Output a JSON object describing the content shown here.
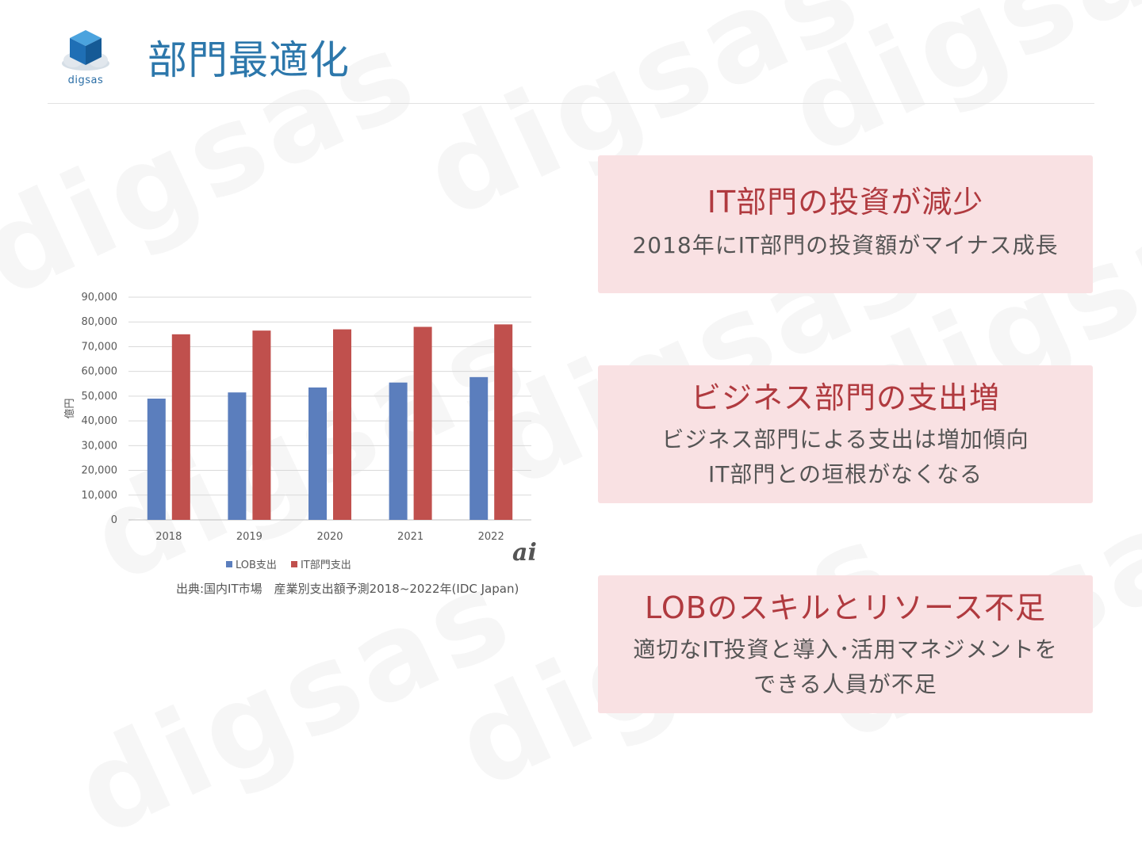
{
  "brand": {
    "logo_text": "digsas",
    "watermark_text": "digsas"
  },
  "page": {
    "title": "部門最適化"
  },
  "chart_data": {
    "type": "bar",
    "categories": [
      "2018",
      "2019",
      "2020",
      "2021",
      "2022"
    ],
    "series": [
      {
        "name": "LOB支出",
        "color": "#5b7ebd",
        "values": [
          49000,
          51500,
          53500,
          55500,
          57700
        ]
      },
      {
        "name": "IT部門支出",
        "color": "#c0504d",
        "values": [
          75000,
          76500,
          77000,
          78000,
          79000
        ]
      }
    ],
    "ylabel": "億円",
    "ylim": [
      0,
      90000
    ],
    "yticks": [
      "0",
      "10,000",
      "20,000",
      "30,000",
      "40,000",
      "50,000",
      "60,000",
      "70,000",
      "80,000",
      "90,000"
    ],
    "grid": true,
    "legend": "bottom",
    "source": "出典:国内IT市場　産業別支出額予測2018~2022年(IDC Japan)",
    "badge": "ai"
  },
  "cards": [
    {
      "heading": "IT部門の投資が減少",
      "lines": [
        "2018年にIT部門の投資額がマイナス成長"
      ]
    },
    {
      "heading": "ビジネス部門の支出増",
      "lines": [
        "ビジネス部門による支出は増加傾向",
        "IT部門との垣根がなくなる"
      ]
    },
    {
      "heading": "LOBのスキルとリソース不足",
      "lines": [
        "適切なIT投資と導入･活用マネジメントを",
        "できる人員が不足"
      ]
    }
  ]
}
